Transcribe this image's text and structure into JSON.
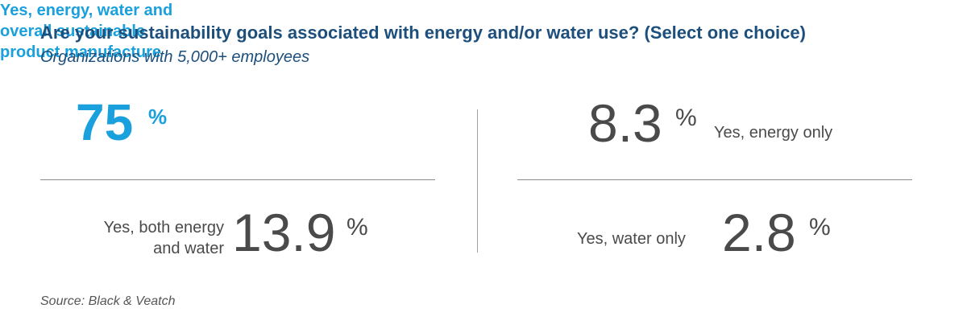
{
  "title": "Are your sustainability goals associated with energy and/or water use? (Select one choice)",
  "subtitle": "Organizations with 5,000+ employees",
  "source": "Source: Black & Veatch",
  "percent_symbol": "%",
  "stats": {
    "all": {
      "value": "75",
      "label_lines": [
        "Yes, energy, water and",
        "overall sustainable",
        "product manufacture"
      ]
    },
    "both": {
      "value": "13.9",
      "label_lines": [
        "Yes, both energy",
        "and water"
      ]
    },
    "energy": {
      "value": "8.3",
      "label": "Yes, energy only"
    },
    "water": {
      "value": "2.8",
      "label": "Yes, water only"
    }
  },
  "colors": {
    "title": "#1d4f7c",
    "highlight": "#1aa0dc",
    "text": "#4a4a4a"
  },
  "chart_data": {
    "type": "table",
    "title": "Are your sustainability goals associated with energy and/or water use? (Select one choice)",
    "subtitle": "Organizations with 5,000+ employees",
    "categories": [
      "Yes, energy, water and overall sustainable product manufacture",
      "Yes, both energy and water",
      "Yes, energy only",
      "Yes, water only"
    ],
    "values": [
      75,
      13.9,
      8.3,
      2.8
    ],
    "unit": "%",
    "source": "Source: Black & Veatch"
  }
}
